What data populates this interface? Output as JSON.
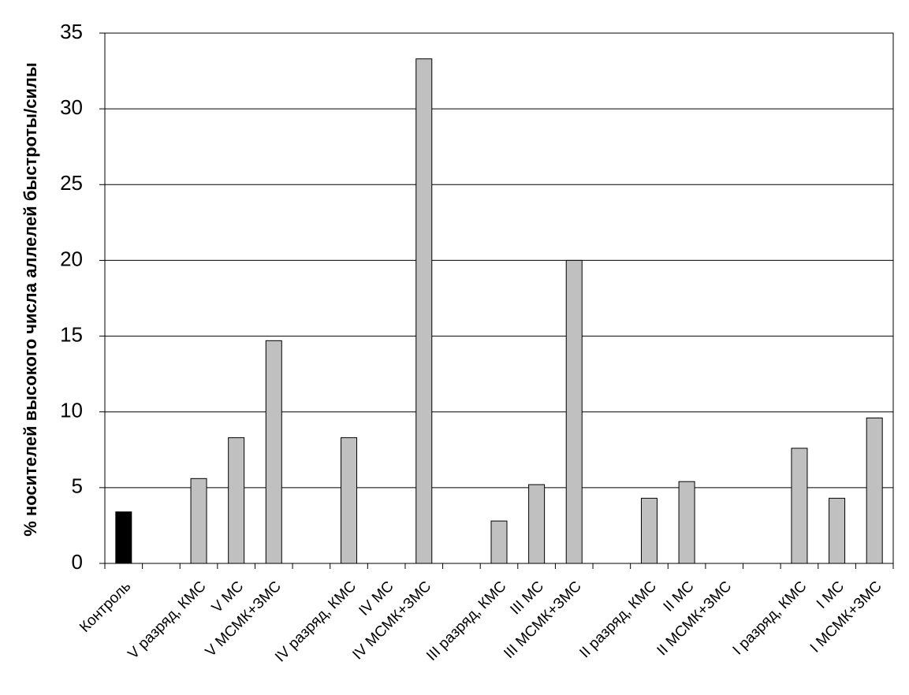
{
  "chart_data": {
    "type": "bar",
    "y_label": "% носителей  высокого числа аллелей быстроты/силы",
    "categories": [
      "Контроль",
      null,
      "V разряд, КМС",
      "V МС",
      "V МСМК+ЗМС",
      null,
      "IV разряд, КМС",
      "IV МС",
      "IV МСМК+ЗМС",
      null,
      "III разряд, КМС",
      "III МС",
      "III МСМК+ЗМС",
      null,
      "II разряд, КМС",
      "II МС",
      "II МСМК+ЗМС",
      null,
      "I разряд, КМС",
      "I МС",
      "I МСМК+ЗМС"
    ],
    "values": [
      3.4,
      null,
      5.6,
      8.3,
      14.7,
      null,
      8.3,
      0,
      33.3,
      null,
      2.8,
      5.2,
      20.0,
      null,
      4.3,
      5.4,
      0,
      null,
      7.6,
      4.3,
      9.6
    ],
    "colors": [
      "#000000",
      null,
      "#c0c0c0",
      "#c0c0c0",
      "#c0c0c0",
      null,
      "#c0c0c0",
      "#c0c0c0",
      "#c0c0c0",
      null,
      "#c0c0c0",
      "#c0c0c0",
      "#c0c0c0",
      null,
      "#c0c0c0",
      "#c0c0c0",
      "#c0c0c0",
      null,
      "#c0c0c0",
      "#c0c0c0",
      "#c0c0c0"
    ],
    "ylim": [
      0,
      35
    ],
    "yticks": [
      0,
      5,
      10,
      15,
      20,
      25,
      30,
      35
    ],
    "grid": true
  }
}
